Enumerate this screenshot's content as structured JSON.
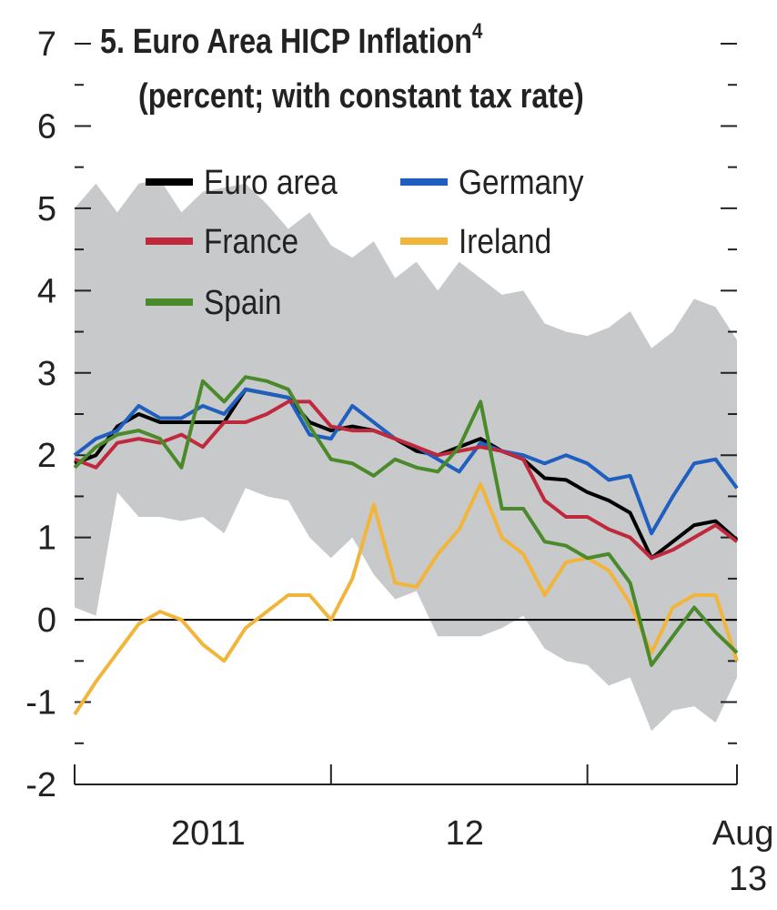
{
  "chart_data": {
    "type": "line",
    "title": "5. Euro Area HICP Inflation",
    "title_note": "4",
    "subtitle": "(percent; with constant tax rate)",
    "categories": [
      null,
      null,
      null,
      null,
      null,
      null,
      "2011",
      null,
      null,
      null,
      null,
      null,
      null,
      null,
      null,
      null,
      null,
      null,
      "12",
      null,
      null,
      null,
      null,
      null,
      null,
      null,
      null,
      null,
      null,
      null,
      null,
      "Aug. 13"
    ],
    "xticks": [
      0,
      12,
      24,
      31
    ],
    "ylim": [
      -2,
      7
    ],
    "yticks": [
      -2,
      -1,
      0,
      1,
      2,
      3,
      4,
      5,
      6,
      7
    ],
    "yminorticks": [
      -1.5,
      -0.5,
      0.5,
      1.5,
      2.5,
      3.5,
      4.5,
      5.5,
      6.5
    ],
    "hline": 0,
    "range": {
      "color": "#c8c9cb",
      "upper": [
        5.0,
        5.3,
        4.95,
        5.3,
        5.35,
        4.95,
        5.2,
        5.25,
        5.3,
        5.05,
        4.75,
        4.95,
        4.55,
        4.4,
        4.6,
        4.15,
        4.35,
        4.0,
        4.35,
        4.15,
        3.95,
        4.0,
        3.6,
        3.5,
        3.45,
        3.55,
        3.75,
        3.3,
        3.5,
        3.9,
        3.8,
        3.4
      ],
      "lower": [
        0.15,
        0.05,
        1.55,
        1.25,
        1.25,
        1.2,
        1.25,
        1.05,
        1.6,
        1.5,
        1.45,
        1.0,
        0.75,
        1.0,
        0.55,
        0.25,
        0.35,
        -0.2,
        -0.2,
        -0.2,
        -0.1,
        0.05,
        -0.35,
        -0.5,
        -0.55,
        -0.8,
        -0.7,
        -1.35,
        -1.1,
        -1.05,
        -1.25,
        -0.7
      ]
    },
    "series": [
      {
        "name": "Euro area",
        "color": "#000000",
        "values": [
          1.9,
          2.0,
          2.35,
          2.5,
          2.4,
          2.4,
          2.4,
          2.4,
          2.8,
          2.75,
          2.7,
          2.4,
          2.3,
          2.35,
          2.3,
          2.2,
          2.05,
          2.0,
          2.1,
          2.2,
          2.05,
          1.95,
          1.72,
          1.7,
          1.55,
          1.45,
          1.3,
          0.75,
          0.95,
          1.15,
          1.2,
          0.97
        ]
      },
      {
        "name": "Germany",
        "color": "#1f5fbf",
        "values": [
          2.0,
          2.2,
          2.3,
          2.6,
          2.45,
          2.45,
          2.6,
          2.5,
          2.8,
          2.75,
          2.7,
          2.25,
          2.2,
          2.6,
          2.4,
          2.2,
          2.1,
          1.95,
          1.8,
          2.15,
          2.05,
          2.0,
          1.9,
          2.0,
          1.9,
          1.7,
          1.75,
          1.05,
          1.5,
          1.9,
          1.95,
          1.6
        ]
      },
      {
        "name": "France",
        "color": "#c0283c",
        "values": [
          1.95,
          1.85,
          2.15,
          2.2,
          2.15,
          2.25,
          2.1,
          2.4,
          2.4,
          2.5,
          2.65,
          2.65,
          2.35,
          2.3,
          2.3,
          2.2,
          2.1,
          2.0,
          2.05,
          2.1,
          2.05,
          1.95,
          1.45,
          1.25,
          1.25,
          1.1,
          1.0,
          0.75,
          0.85,
          1.0,
          1.15,
          0.95
        ]
      },
      {
        "name": "Ireland",
        "color": "#f2b53c",
        "values": [
          -1.15,
          -0.75,
          -0.4,
          -0.05,
          0.1,
          0.0,
          -0.3,
          -0.5,
          -0.1,
          0.1,
          0.3,
          0.3,
          0.0,
          0.5,
          1.4,
          0.45,
          0.4,
          0.8,
          1.1,
          1.65,
          1.0,
          0.8,
          0.3,
          0.7,
          0.75,
          0.6,
          0.2,
          -0.4,
          0.15,
          0.3,
          0.3,
          -0.5
        ]
      },
      {
        "name": "Spain",
        "color": "#4a8a2a",
        "values": [
          1.85,
          2.1,
          2.25,
          2.3,
          2.2,
          1.85,
          2.9,
          2.65,
          2.95,
          2.9,
          2.8,
          2.35,
          1.95,
          1.9,
          1.75,
          1.95,
          1.85,
          1.8,
          2.1,
          2.65,
          1.35,
          1.35,
          0.95,
          0.9,
          0.75,
          0.8,
          0.45,
          -0.55,
          -0.2,
          0.15,
          -0.15,
          -0.4
        ]
      }
    ]
  }
}
